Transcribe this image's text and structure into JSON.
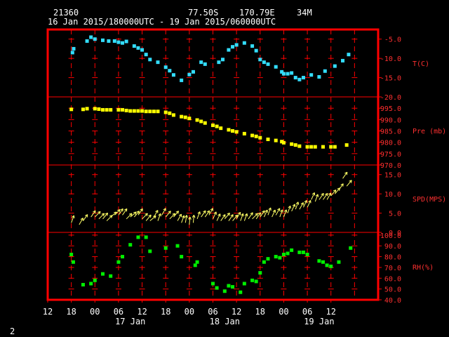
{
  "header": {
    "station": "21360",
    "lat": "77.50S",
    "lon": "170.79E",
    "elev": "34M",
    "period": "16 Jan 2015/180000UTC - 19 Jan 2015/060000UTC",
    "page": "2"
  },
  "colors": {
    "frame": "#ff0000",
    "grid": "#ff0000",
    "text": "#ffffff",
    "axis_label": "#ff3030",
    "temp": "#33ddff",
    "pres": "#ffff00",
    "wind": "#ffff66",
    "rh": "#00ee00"
  },
  "x_axis": {
    "ticks": [
      "12",
      "18",
      "00",
      "06",
      "12",
      "18",
      "00",
      "06",
      "12",
      "18",
      "00",
      "06",
      "12"
    ],
    "day_labels": [
      {
        "label": "17 Jan",
        "hour": 33
      },
      {
        "label": "18 Jan",
        "hour": 57
      },
      {
        "label": "19 Jan",
        "hour": 81
      }
    ],
    "range_hours": [
      12,
      96
    ],
    "tick_step_hours": 6
  },
  "chart_data": [
    {
      "type": "scatter",
      "ylabel": "T(C)",
      "ylim": [
        -20,
        -2.5
      ],
      "yticks": [
        "-5.0",
        "-10.0",
        "-15.0",
        "-20.0"
      ],
      "ytick_values": [
        -5,
        -10,
        -15,
        -20
      ],
      "x": [
        18.3,
        18.6,
        22,
        23,
        24,
        26,
        27.5,
        29,
        30,
        31,
        32,
        34,
        35,
        36,
        37,
        38,
        40,
        42,
        43,
        44,
        46,
        48,
        49,
        51,
        52,
        55.5,
        56.5,
        58,
        59,
        60,
        62,
        64,
        65,
        66,
        67,
        68,
        70,
        71.5,
        72,
        73,
        74,
        75,
        76,
        77,
        79,
        81,
        82.5,
        85,
        87,
        88.5
      ],
      "y": [
        -8.5,
        -7.5,
        -5.5,
        -4.5,
        -5.0,
        -5.3,
        -5.5,
        -5.5,
        -5.8,
        -6.0,
        -5.6,
        -6.8,
        -7.3,
        -7.8,
        -9.0,
        -10.3,
        -11.0,
        -12.3,
        -13.2,
        -14.3,
        -15.7,
        -14.2,
        -13.5,
        -11.0,
        -11.5,
        -11.0,
        -10.3,
        -7.8,
        -7.0,
        -6.5,
        -6.0,
        -6.8,
        -8.0,
        -10.3,
        -11.0,
        -11.5,
        -12.2,
        -13.5,
        -14.0,
        -14.0,
        -13.8,
        -15.0,
        -15.5,
        -15.0,
        -14.3,
        -14.8,
        -13.3,
        -12.0,
        -10.6,
        -9.0
      ]
    },
    {
      "type": "scatter",
      "ylabel": "Pre (mb)",
      "ylim": [
        970,
        1000
      ],
      "yticks": [
        "995.0",
        "990.0",
        "985.0",
        "980.0",
        "975.0",
        "970.0"
      ],
      "ytick_values": [
        995,
        990,
        985,
        980,
        975,
        970
      ],
      "x": [
        18,
        21,
        22,
        24,
        25,
        26,
        27,
        28,
        30,
        31,
        32,
        33,
        34,
        35,
        36,
        37,
        38,
        39,
        40,
        42,
        43,
        44,
        46,
        47,
        48,
        50,
        51,
        52,
        54,
        55,
        56,
        58,
        59,
        60,
        62,
        64,
        65,
        66,
        68,
        70,
        71.5,
        72,
        74,
        75,
        76,
        78,
        79,
        80,
        82,
        84,
        85,
        88
      ],
      "y": [
        994.5,
        994.5,
        994.8,
        994.8,
        994.6,
        994.3,
        994.3,
        994.3,
        994.3,
        994.3,
        994.0,
        993.8,
        993.8,
        993.8,
        993.8,
        993.6,
        993.6,
        993.6,
        993.6,
        993.2,
        992.8,
        992.0,
        991.3,
        991.0,
        990.5,
        989.8,
        989.2,
        988.5,
        987.5,
        987.0,
        986.2,
        985.5,
        985.0,
        984.6,
        983.8,
        983.0,
        982.6,
        982.0,
        981.3,
        980.8,
        980.3,
        979.8,
        979.2,
        978.8,
        978.3,
        978.0,
        978.0,
        978.0,
        978.0,
        978.0,
        978.0,
        978.8
      ]
    },
    {
      "type": "scatter",
      "ylabel": "SPD(MPS)",
      "ylim": [
        0,
        17.5
      ],
      "yticks": [
        "15.0",
        "10.0",
        "5.0",
        "0.0"
      ],
      "ytick_values": [
        15,
        10,
        5,
        0
      ],
      "x": [
        18,
        20,
        21,
        23,
        24,
        25,
        26,
        27,
        28,
        29,
        30,
        31,
        32,
        33,
        34,
        35,
        36,
        37,
        38,
        39,
        40,
        41,
        42,
        43,
        44,
        45,
        46,
        47,
        48,
        49,
        50,
        51,
        52,
        53,
        54,
        55,
        56,
        57,
        58,
        59,
        60,
        61,
        62,
        63,
        64,
        65,
        66,
        67,
        68,
        69,
        70,
        71,
        72,
        73,
        74,
        75,
        76,
        77,
        78,
        79,
        80,
        81,
        82,
        83,
        84,
        85,
        86,
        87,
        88
      ],
      "y": [
        2.5,
        2.0,
        3.0,
        4.0,
        4.0,
        3.5,
        3.5,
        3.0,
        4.0,
        4.5,
        4.5,
        4.5,
        3.5,
        4.0,
        4.0,
        4.5,
        3.5,
        3.0,
        3.0,
        4.0,
        3.0,
        4.5,
        4.0,
        3.5,
        4.0,
        3.0,
        2.5,
        2.5,
        2.0,
        2.5,
        3.5,
        4.0,
        4.0,
        4.5,
        3.5,
        3.0,
        3.0,
        3.5,
        3.0,
        3.0,
        3.5,
        3.0,
        3.0,
        3.5,
        3.5,
        3.5,
        4.0,
        4.0,
        4.5,
        4.0,
        4.5,
        4.0,
        4.0,
        5.0,
        5.5,
        6.0,
        6.0,
        6.5,
        6.5,
        8.5,
        8.0,
        8.5,
        8.5,
        8.5,
        9.5,
        10.0,
        11.0,
        14.0,
        12.0
      ],
      "dir_deg": [
        200,
        210,
        215,
        215,
        225,
        225,
        220,
        225,
        230,
        225,
        215,
        215,
        225,
        230,
        220,
        215,
        225,
        220,
        230,
        210,
        200,
        210,
        220,
        225,
        220,
        210,
        200,
        190,
        185,
        185,
        200,
        215,
        215,
        210,
        205,
        205,
        215,
        220,
        215,
        220,
        210,
        200,
        200,
        215,
        225,
        215,
        215,
        205,
        200,
        205,
        210,
        200,
        200,
        200,
        205,
        200,
        210,
        205,
        205,
        205,
        200,
        215,
        215,
        210,
        220,
        220,
        215,
        215,
        220
      ]
    },
    {
      "type": "scatter",
      "ylabel": "RH(%)",
      "ylim": [
        40,
        102.5
      ],
      "yticks": [
        "100.0",
        "90.0",
        "80.0",
        "70.0",
        "60.0",
        "50.0",
        "40.0"
      ],
      "ytick_values": [
        100,
        90,
        80,
        70,
        60,
        50,
        40
      ],
      "x": [
        18,
        18.5,
        21,
        23,
        24,
        26,
        28,
        30,
        31,
        33,
        35,
        37,
        38,
        42,
        45,
        46,
        49.5,
        50,
        54,
        55,
        57,
        58,
        59,
        61,
        62,
        64,
        65,
        66,
        67,
        68,
        70,
        71,
        72,
        73,
        74,
        76,
        77,
        78,
        81,
        82,
        83,
        84,
        86,
        89
      ],
      "y": [
        82,
        75,
        54,
        55,
        58,
        64,
        62,
        75,
        80,
        91,
        98,
        98,
        85,
        88,
        90,
        80,
        72,
        75,
        55,
        51,
        48,
        53,
        52,
        47,
        55,
        58,
        57,
        65,
        75,
        78,
        80,
        79,
        82,
        83,
        86,
        84,
        84,
        82,
        76,
        75,
        72,
        71,
        75,
        88
      ]
    }
  ]
}
